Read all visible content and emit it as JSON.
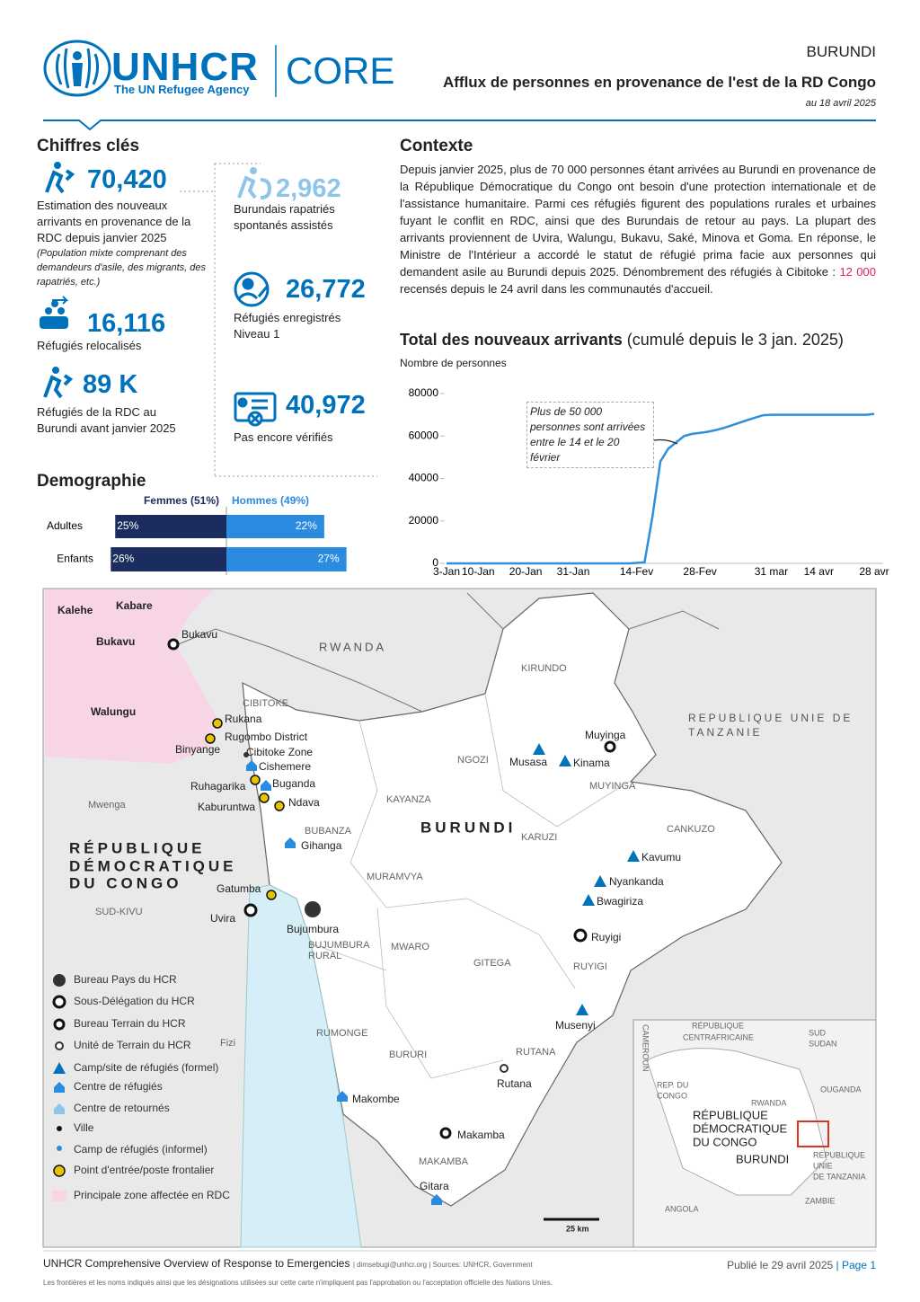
{
  "header": {
    "logo": "UNHCR",
    "logo_sub": "The UN Refugee Agency",
    "product": "CORE",
    "country": "BURUNDI",
    "title": "Afflux de personnes en provenance de l'est de la RD Congo",
    "date": "au 18 avril 2025"
  },
  "key_figures": {
    "title": "Chiffres clés",
    "items": [
      {
        "value": "70,420",
        "label": "Estimation des nouveaux arrivants en provenance de la RDC depuis janvier 2025",
        "note": "(Population mixte comprenant des demandeurs d'asile, des migrants, des rapatriés, etc.)"
      },
      {
        "value": "16,116",
        "label": "Réfugiés relocalisés"
      },
      {
        "value": "89 K",
        "label": "Réfugiés de la RDC au Burundi avant janvier 2025"
      },
      {
        "value": "2,962",
        "label": "Burundais rapatriés spontanés assistés"
      },
      {
        "value": "26,772",
        "label": "Réfugiés enregistrés Niveau 1"
      },
      {
        "value": "40,972",
        "label": "Pas encore vérifiés"
      }
    ]
  },
  "context": {
    "title": "Contexte",
    "text_before": "Depuis janvier 2025, plus de 70 000 personnes étant arrivées au Burundi en provenance de la République Démocratique du Congo ont besoin d'une protection internationale et de l'assistance humanitaire. Parmi ces réfugiés figurent des populations rurales et urbaines fuyant le conflit en RDC, ainsi que des Burundais de retour au pays. La plupart des arrivants proviennent de Uvira, Walungu, Bukavu, Saké, Minova et Goma. En réponse, le Ministre de l'Intérieur a accordé le statut de réfugié prima facie aux personnes qui demandent asile au Burundi depuis 2025. Dénombrement des réfugiés à Cibitoke : ",
    "highlight": "12 000",
    "text_after": " recensés depuis le 24 avril dans les communautés d'accueil."
  },
  "chart_data": [
    {
      "type": "line",
      "title": "Total des nouveaux arrivants",
      "subtitle": "(cumulé depuis le 3 jan. 2025)",
      "y_label": "Nombre de personnes",
      "annotation": "Plus de 50 000 personnes sont arrivées entre le 14 et le 20 février",
      "categories": [
        "3-Jan",
        null,
        null,
        null,
        "10-Jan",
        null,
        null,
        null,
        null,
        null,
        "20-Jan",
        null,
        null,
        null,
        null,
        null,
        "31-Jan",
        null,
        null,
        null,
        null,
        null,
        null,
        null,
        "14-Fev",
        null,
        null,
        null,
        null,
        null,
        null,
        null,
        "28-Fev",
        null,
        null,
        null,
        null,
        null,
        null,
        null,
        null,
        "31 mar",
        null,
        null,
        null,
        null,
        null,
        "14 avr",
        null,
        null,
        null,
        null,
        null,
        null,
        "28 avr"
      ],
      "series": [
        {
          "name": "Total des nouveaux arrivants",
          "color": "#2e8fdc",
          "values": [
            0,
            0,
            0,
            0,
            0,
            0,
            0,
            0,
            0,
            0,
            0,
            0,
            0,
            0,
            0,
            0,
            0,
            0,
            0,
            0,
            0,
            0,
            0,
            0,
            200,
            500,
            22000,
            48000,
            54000,
            57000,
            60000,
            61000,
            61500,
            62000,
            62800,
            63800,
            65000,
            66300,
            67500,
            68700,
            69800,
            70000,
            70000,
            70000,
            70000,
            70000,
            70000,
            70000,
            70000,
            70000,
            70000,
            70000,
            70000,
            70000,
            70420
          ]
        }
      ],
      "ylim": [
        0,
        80000
      ],
      "yticks": [
        0,
        20000,
        40000,
        60000,
        80000
      ],
      "grid": false
    },
    {
      "type": "bar",
      "title": "Demographie",
      "orientation": "horizontal-butterfly",
      "categories": [
        "Adultes",
        "Enfants"
      ],
      "series": [
        {
          "name": "Femmes (51%)",
          "color": "#1b2d5e",
          "values": [
            25,
            26
          ],
          "value_labels": [
            "25%",
            "26%"
          ]
        },
        {
          "name": "Hommes (49%)",
          "color": "#2a8be0",
          "values": [
            22,
            27
          ],
          "value_labels": [
            "22%",
            "27%"
          ]
        }
      ]
    }
  ],
  "map": {
    "labels": [
      "Kalehe",
      "Kabare",
      "Bukavu",
      "Bukavu",
      "RWANDA",
      "KIRUNDO",
      "REPUBLIQUE UNIE DE",
      "TANZANIE",
      "Walungu",
      "CIBITOKE",
      "Rukana",
      "Rugombo District",
      "Binyange",
      "Cibitoke Zone",
      "Cishemere",
      "Ruhagarika",
      "Buganda",
      "Kaburuntwa",
      "Ndava",
      "Mwenga",
      "NGOZI",
      "Musasa",
      "Kinama",
      "Muyinga",
      "MUYINGA",
      "KAYANZA",
      "BUBANZA",
      "Gihanga",
      "BURUNDI",
      "KARUZI",
      "CANKUZO",
      "Kavumu",
      "Nyankanda",
      "Bwagiriza",
      "RÉPUBLIQUE",
      "DÉMOCRATIQUE",
      "DU CONGO",
      "SUD-KIVU",
      "Gatumba",
      "Uvira",
      "Bujumbura",
      "BUJUMBURA",
      "RURAL",
      "MURAMVYA",
      "MWARO",
      "GITEGA",
      "Ruyigi",
      "RUYIGI",
      "Musenyi",
      "RUMONGE",
      "BURURI",
      "RUTANA",
      "Rutana",
      "Makombe",
      "Makamba",
      "MAKAMBA",
      "Gitara",
      "25 km",
      "RÉPUBLIQUE",
      "CENTRAFRICAINE",
      "SUD",
      "SUDAN",
      "CAMEROUN",
      "REP. DU",
      "CONGO",
      "OUGANDA",
      "RWANDA",
      "RÉPUBLIQUE",
      "DÉMOCRATIQUE",
      "DU CONGO",
      "BURUNDI",
      "RÉPUBLIQUE",
      "UNIE",
      "DE TANZANIA",
      "ZAMBIE",
      "ANGOLA",
      "Fizi"
    ],
    "legend": [
      "Bureau Pays du HCR",
      "Sous-Délégation du HCR",
      "Bureau Terrain du HCR",
      "Unité de Terrain du HCR",
      "Camp/site de réfugiés (formel)",
      "Centre de réfugiés",
      "Centre de retournés",
      "Ville",
      "Camp de réfugiés (informel)",
      "Point d'entrée/poste frontalier",
      "Principale zone affectée en RDC"
    ]
  },
  "footer": {
    "title": "UNHCR Comprehensive Overview of Response to Emergencies",
    "sources": "| dimsebugi@unhcr.org | Sources: UNHCR, Government",
    "published": "Publié le 29 avril 2025",
    "page": "| Page 1",
    "disclaimer": "Les frontières et les noms indiqués ainsi que les désignations utilisées sur cette carte n'impliquent pas l'approbation ou l'acceptation officielle des Nations Unies."
  }
}
